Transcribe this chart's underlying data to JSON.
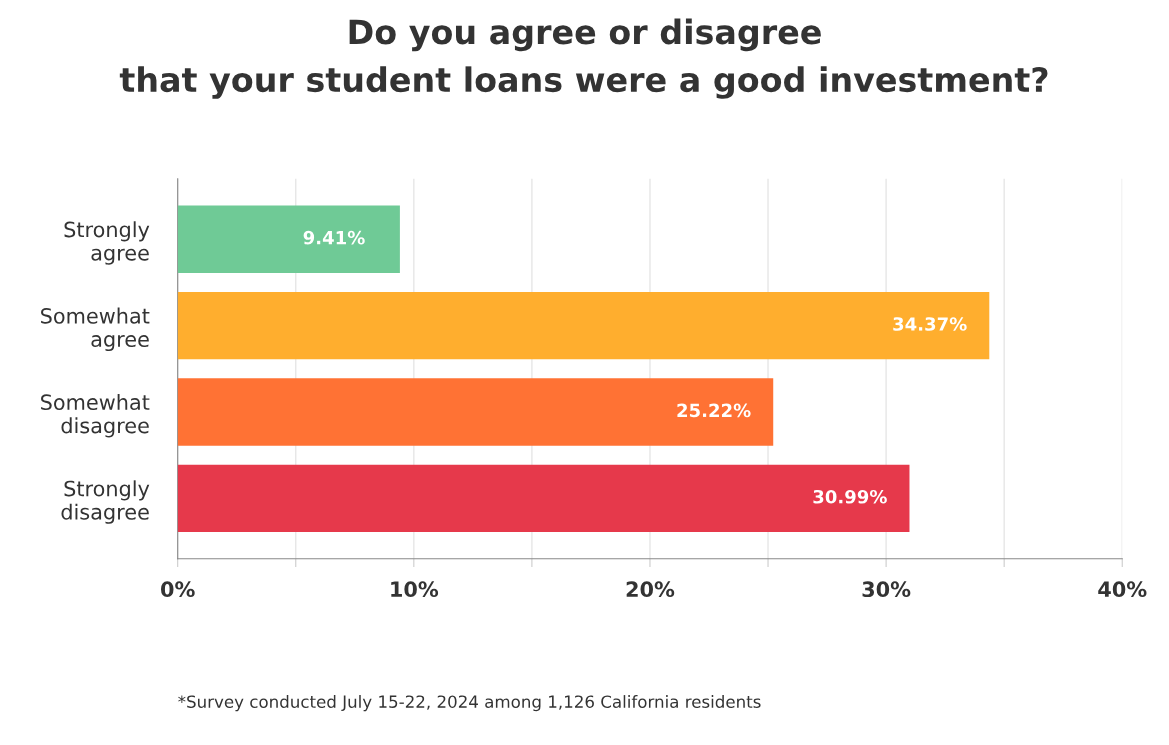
{
  "chart_data": {
    "type": "bar",
    "orientation": "horizontal",
    "title": "Do you agree or disagree\nthat your student loans were a good investment?",
    "categories": [
      "Strongly\nagree",
      "Somewhat\nagree",
      "Somewhat\ndisagree",
      "Strongly\ndisagree"
    ],
    "values": [
      9.41,
      34.37,
      25.22,
      30.99
    ],
    "colors": [
      "#6fca96",
      "#ffae2e",
      "#ff7234",
      "#e6394b"
    ],
    "value_labels": [
      "9.41%",
      "34.37%",
      "25.22%",
      "30.99%"
    ],
    "xlim": [
      0,
      40
    ],
    "xticks": [
      {
        "value": 0,
        "label": "0%"
      },
      {
        "value": 5,
        "label": null
      },
      {
        "value": 10,
        "label": "10%"
      },
      {
        "value": 15,
        "label": null
      },
      {
        "value": 20,
        "label": "20%"
      },
      {
        "value": 25,
        "label": null
      },
      {
        "value": 30,
        "label": "30%"
      },
      {
        "value": 35,
        "label": null
      },
      {
        "value": 40,
        "label": "40%"
      }
    ],
    "grid": "x",
    "annotations": [
      "*Survey conducted July 15-22, 2024 among 1,126 California residents"
    ]
  }
}
